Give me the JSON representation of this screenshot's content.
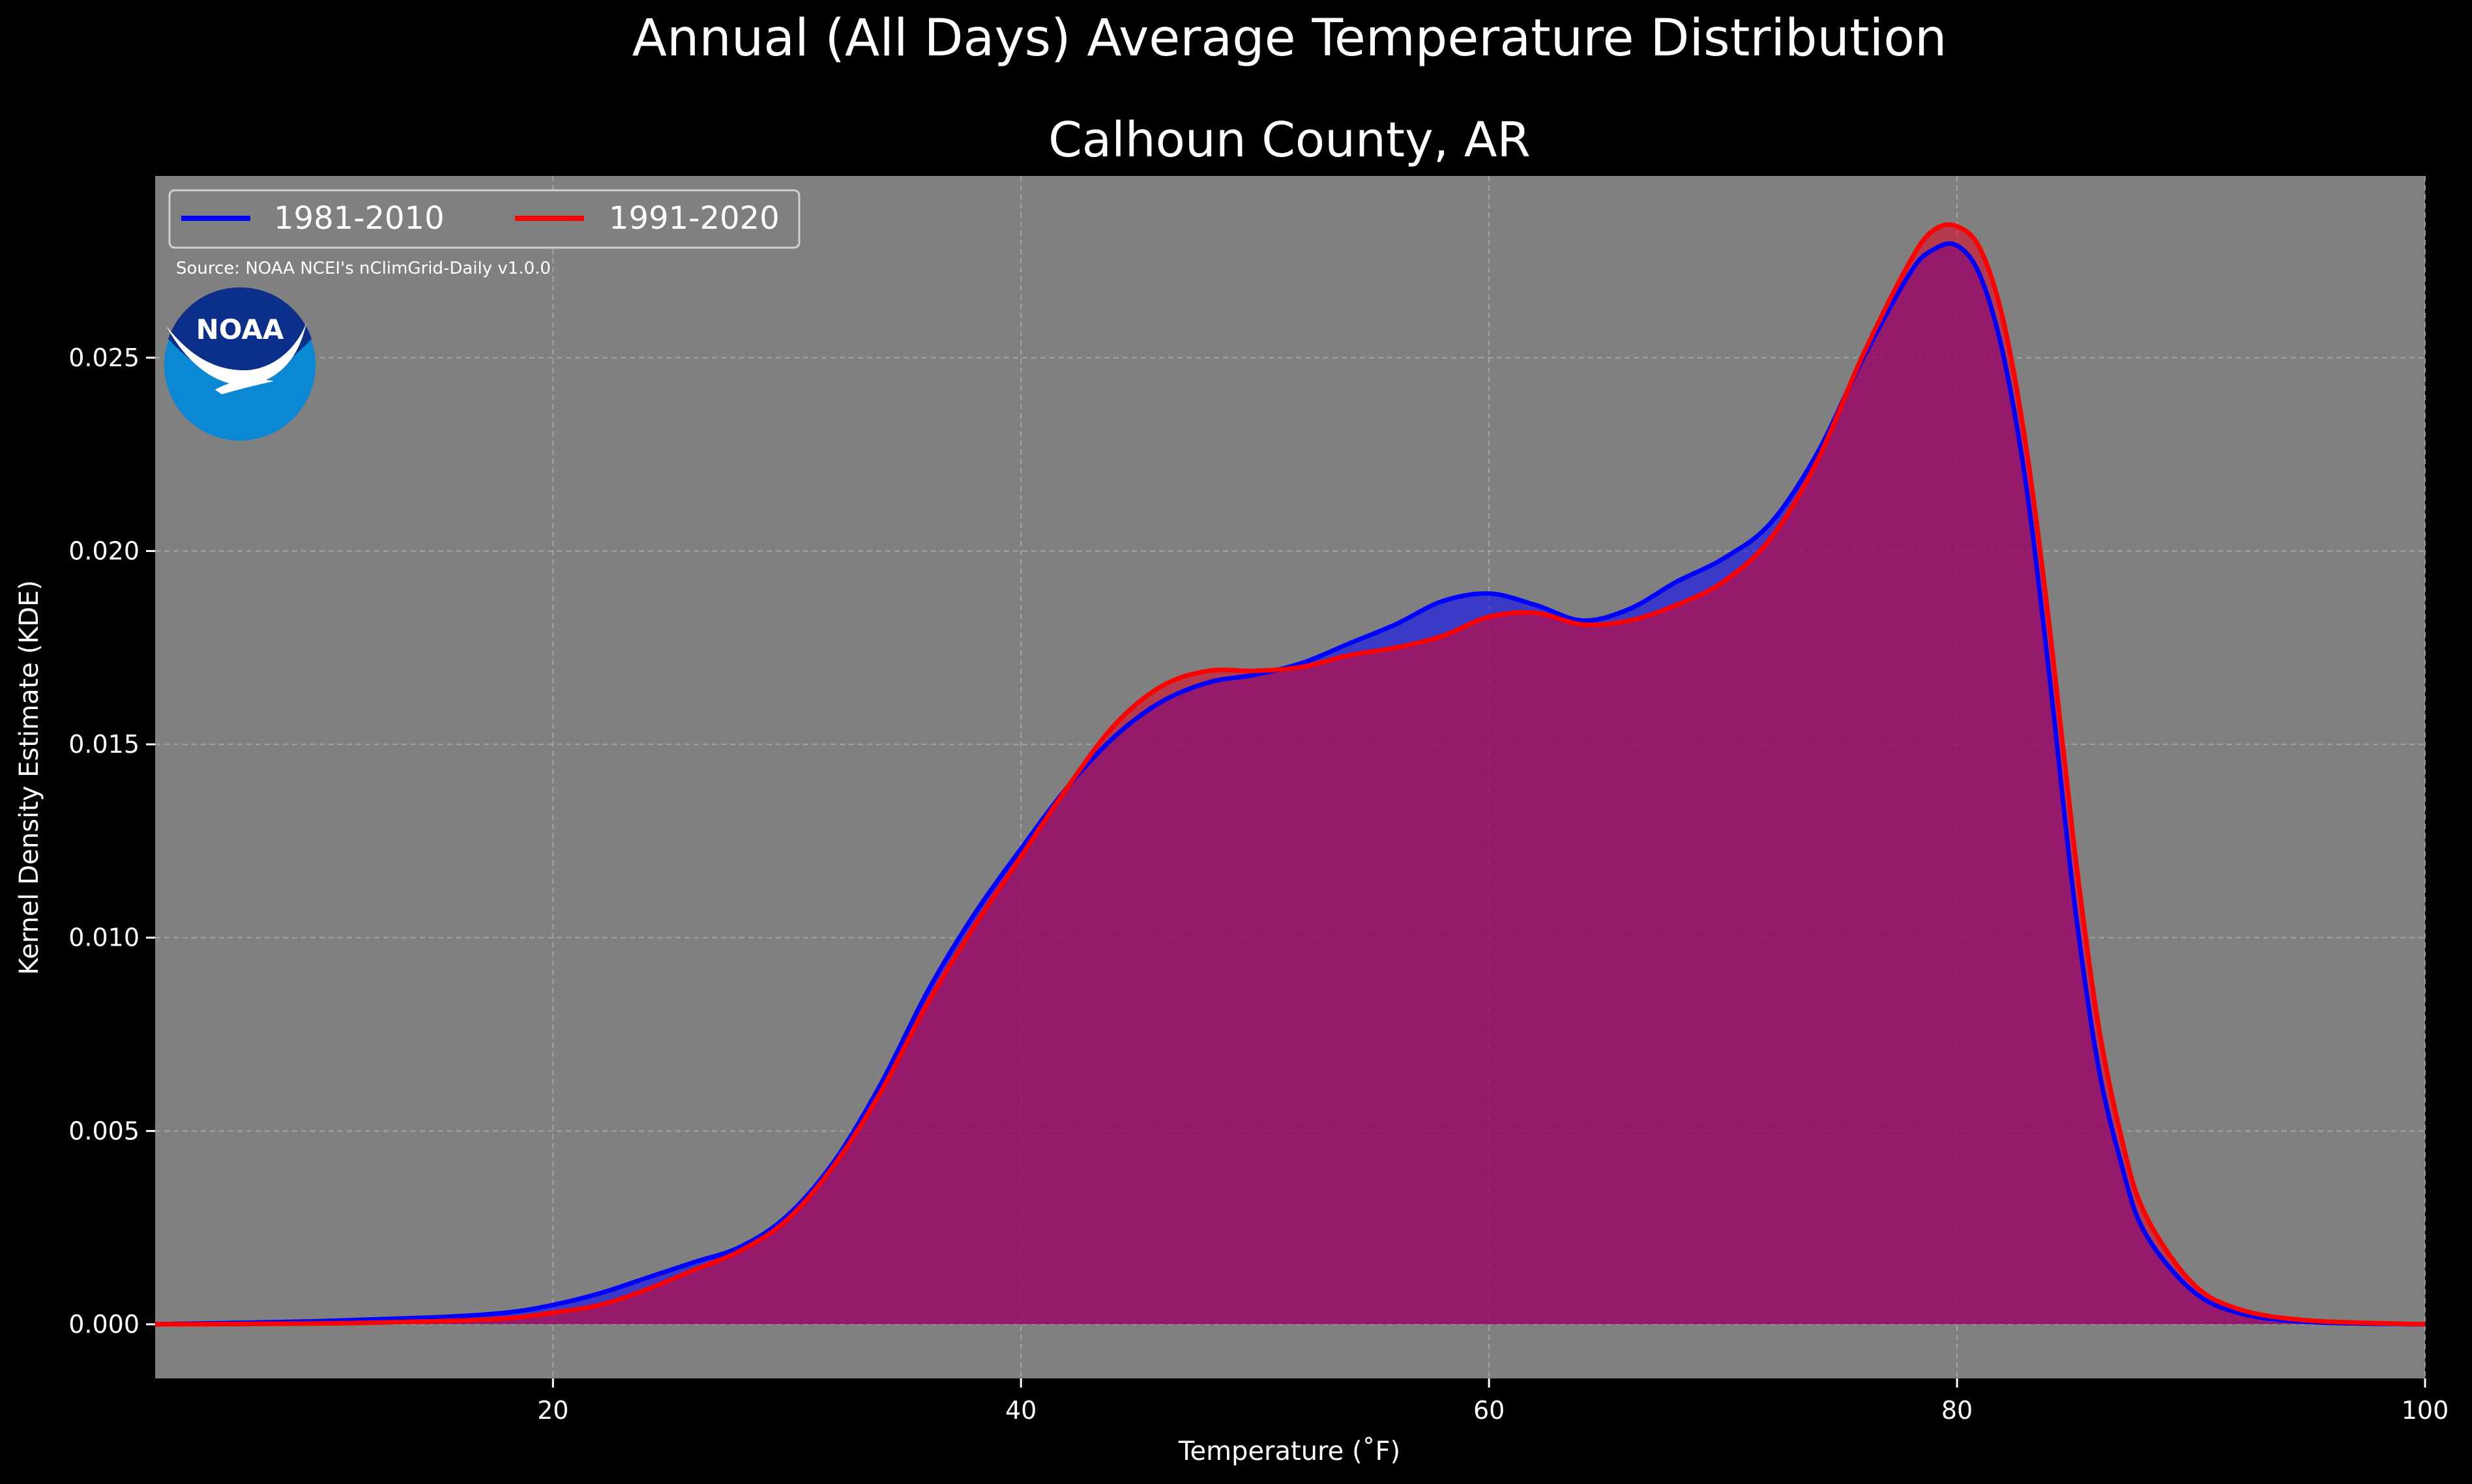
{
  "chart_data": {
    "type": "area",
    "suptitle": "Annual (All Days) Average Temperature Distribution",
    "title": "Calhoun County, AR",
    "xlabel": "Temperature (˚F)",
    "ylabel": "Kernel Density Estimate (KDE)",
    "xlim": [
      3,
      100
    ],
    "ylim": [
      -0.0014,
      0.0297
    ],
    "xticks": [
      20,
      40,
      60,
      80,
      100
    ],
    "yticks": [
      0.0,
      0.005,
      0.01,
      0.015,
      0.02,
      0.025
    ],
    "ytick_labels": [
      "0.000",
      "0.005",
      "0.010",
      "0.015",
      "0.020",
      "0.025"
    ],
    "grid": true,
    "legend_placement": "top-left",
    "source_note": "Source: NOAA NCEI's nClimGrid-Daily v1.0.0",
    "logo_text": "NOAA",
    "colors": {
      "background": "#000000",
      "plot_background": "#808080",
      "text": "#ffffff",
      "grid": "#b3b3b3"
    },
    "series": [
      {
        "name": "1981-2010",
        "color": "#0000ff",
        "fill": "#0000ff",
        "points": [
          [
            3,
            0.0
          ],
          [
            10,
            8e-05
          ],
          [
            15,
            0.00018
          ],
          [
            18,
            0.0003
          ],
          [
            20,
            0.0005
          ],
          [
            22,
            0.0008
          ],
          [
            24,
            0.0012
          ],
          [
            26,
            0.0016
          ],
          [
            28,
            0.002
          ],
          [
            30,
            0.0028
          ],
          [
            32,
            0.0042
          ],
          [
            34,
            0.0062
          ],
          [
            36,
            0.0086
          ],
          [
            38,
            0.0106
          ],
          [
            40,
            0.0123
          ],
          [
            42,
            0.0139
          ],
          [
            44,
            0.0152
          ],
          [
            46,
            0.0161
          ],
          [
            48,
            0.0166
          ],
          [
            50,
            0.0168
          ],
          [
            52,
            0.0171
          ],
          [
            54,
            0.0176
          ],
          [
            56,
            0.0181
          ],
          [
            58,
            0.0187
          ],
          [
            60,
            0.0189
          ],
          [
            62,
            0.0186
          ],
          [
            64,
            0.0182
          ],
          [
            66,
            0.0185
          ],
          [
            68,
            0.0192
          ],
          [
            70,
            0.0198
          ],
          [
            72,
            0.0207
          ],
          [
            74,
            0.0225
          ],
          [
            76,
            0.025
          ],
          [
            78,
            0.0272
          ],
          [
            79,
            0.0278
          ],
          [
            80,
            0.0279
          ],
          [
            81,
            0.0271
          ],
          [
            82,
            0.025
          ],
          [
            83,
            0.0215
          ],
          [
            84,
            0.0165
          ],
          [
            85,
            0.011
          ],
          [
            86,
            0.0068
          ],
          [
            87,
            0.0042
          ],
          [
            88,
            0.0024
          ],
          [
            90,
            0.0009
          ],
          [
            92,
            0.0003
          ],
          [
            95,
            6e-05
          ],
          [
            100,
            0.0
          ]
        ]
      },
      {
        "name": "1991-2020",
        "color": "#ff0000",
        "fill": "#e00020",
        "points": [
          [
            3,
            0.0
          ],
          [
            10,
            2e-05
          ],
          [
            15,
            8e-05
          ],
          [
            18,
            0.00015
          ],
          [
            20,
            0.0003
          ],
          [
            22,
            0.0005
          ],
          [
            24,
            0.0009
          ],
          [
            26,
            0.0014
          ],
          [
            28,
            0.0019
          ],
          [
            30,
            0.0027
          ],
          [
            32,
            0.0041
          ],
          [
            34,
            0.006
          ],
          [
            36,
            0.0083
          ],
          [
            38,
            0.0103
          ],
          [
            40,
            0.0121
          ],
          [
            42,
            0.0139
          ],
          [
            44,
            0.0155
          ],
          [
            46,
            0.0165
          ],
          [
            48,
            0.0169
          ],
          [
            50,
            0.0169
          ],
          [
            52,
            0.017
          ],
          [
            54,
            0.0173
          ],
          [
            56,
            0.0175
          ],
          [
            58,
            0.0178
          ],
          [
            60,
            0.0183
          ],
          [
            62,
            0.0184
          ],
          [
            64,
            0.0181
          ],
          [
            66,
            0.0182
          ],
          [
            68,
            0.0186
          ],
          [
            70,
            0.0192
          ],
          [
            72,
            0.0203
          ],
          [
            74,
            0.0223
          ],
          [
            76,
            0.0251
          ],
          [
            78,
            0.0275
          ],
          [
            79,
            0.0283
          ],
          [
            80,
            0.0284
          ],
          [
            81,
            0.0278
          ],
          [
            82,
            0.0259
          ],
          [
            83,
            0.0225
          ],
          [
            84,
            0.0178
          ],
          [
            85,
            0.0124
          ],
          [
            86,
            0.0079
          ],
          [
            87,
            0.0049
          ],
          [
            88,
            0.0029
          ],
          [
            90,
            0.0011
          ],
          [
            92,
            0.0004
          ],
          [
            95,
            0.0001
          ],
          [
            100,
            0.0
          ]
        ]
      }
    ]
  }
}
